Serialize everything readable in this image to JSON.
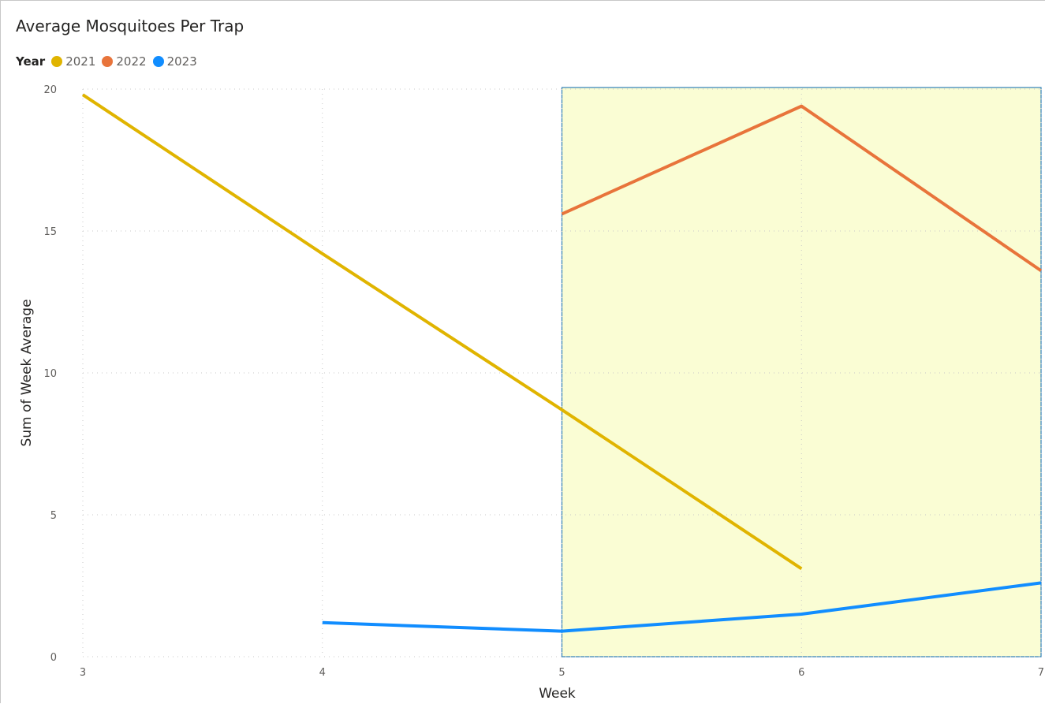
{
  "chart_data": {
    "type": "line",
    "title": "Average Mosquitoes Per Trap",
    "xlabel": "Week",
    "ylabel": "Sum of Week Average",
    "x": [
      3,
      4,
      5,
      6,
      7
    ],
    "xlim": [
      3,
      7
    ],
    "ylim": [
      0,
      20
    ],
    "y_ticks": [
      0,
      5,
      10,
      15,
      20
    ],
    "grid": true,
    "legend": {
      "title": "Year",
      "placement": "top-left"
    },
    "series": [
      {
        "name": "2021",
        "color": "#e0b400",
        "x": [
          3,
          4,
          5,
          6
        ],
        "values": [
          19.8,
          14.2,
          8.7,
          3.1
        ]
      },
      {
        "name": "2022",
        "color": "#e8743b",
        "x": [
          5,
          6,
          7
        ],
        "values": [
          15.6,
          19.4,
          13.6
        ]
      },
      {
        "name": "2023",
        "color": "#118dff",
        "x": [
          4,
          5,
          6,
          7
        ],
        "values": [
          1.2,
          0.9,
          1.5,
          2.6
        ]
      }
    ],
    "selection": {
      "x_range": [
        5,
        7
      ],
      "fill": "#fafdd4",
      "border": "#2f7fb8"
    }
  }
}
